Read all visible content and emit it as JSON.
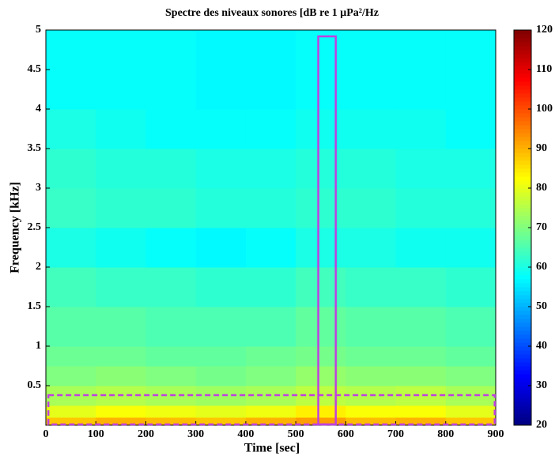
{
  "chart_data": {
    "type": "heatmap",
    "title": "Spectre des niveaux sonores [dB re 1 μPa²/Hz",
    "x_label": "Time [sec]",
    "y_label": "Frequency [kHz]",
    "xlim": [
      0,
      900
    ],
    "ylim": [
      0,
      5
    ],
    "xticks": [
      0,
      100,
      200,
      300,
      400,
      500,
      600,
      700,
      800,
      900
    ],
    "yticks": [
      0.5,
      1,
      1.5,
      2,
      2.5,
      3,
      3.5,
      4,
      4.5,
      5
    ],
    "xbins": [
      0,
      100,
      200,
      300,
      400,
      500,
      600,
      700,
      800,
      900
    ],
    "ybins": [
      0,
      0.1,
      0.25,
      0.5,
      0.75,
      1,
      1.5,
      2,
      2.5,
      3,
      3.5,
      4,
      4.5,
      5
    ],
    "values": [
      [
        88,
        90,
        89,
        88,
        90,
        92,
        89,
        90,
        88
      ],
      [
        80,
        82,
        81,
        80,
        81,
        84,
        82,
        82,
        80
      ],
      [
        74,
        75,
        74,
        73,
        74,
        76,
        75,
        76,
        74
      ],
      [
        70,
        71,
        70,
        69,
        70,
        72,
        71,
        71,
        70
      ],
      [
        68,
        68,
        67,
        67,
        68,
        69,
        68,
        68,
        67
      ],
      [
        66,
        66,
        65,
        65,
        65,
        67,
        66,
        66,
        65
      ],
      [
        64,
        63,
        63,
        62,
        62,
        64,
        63,
        63,
        62
      ],
      [
        60,
        59,
        58,
        57,
        58,
        60,
        60,
        59,
        59
      ],
      [
        63,
        62,
        62,
        61,
        61,
        62,
        62,
        61,
        61
      ],
      [
        62,
        61,
        61,
        60,
        60,
        61,
        61,
        60,
        60
      ],
      [
        60,
        59,
        58,
        58,
        58,
        59,
        59,
        59,
        58
      ],
      [
        58,
        58,
        58,
        57,
        57,
        58,
        58,
        58,
        58
      ],
      [
        58,
        58,
        58,
        57,
        57,
        58,
        58,
        58,
        58
      ]
    ],
    "colormap": "jet",
    "clim": [
      20,
      120
    ],
    "cticks": [
      20,
      30,
      40,
      50,
      60,
      70,
      80,
      90,
      100,
      110,
      120
    ],
    "highlights": [
      {
        "x": [
          545,
          580
        ],
        "y": [
          0,
          4.92
        ],
        "style": "solid",
        "color": "#c040e0"
      },
      {
        "x": [
          5,
          898
        ],
        "y": [
          0,
          0.38
        ],
        "style": "dashed",
        "color": "#c040e0"
      }
    ]
  }
}
